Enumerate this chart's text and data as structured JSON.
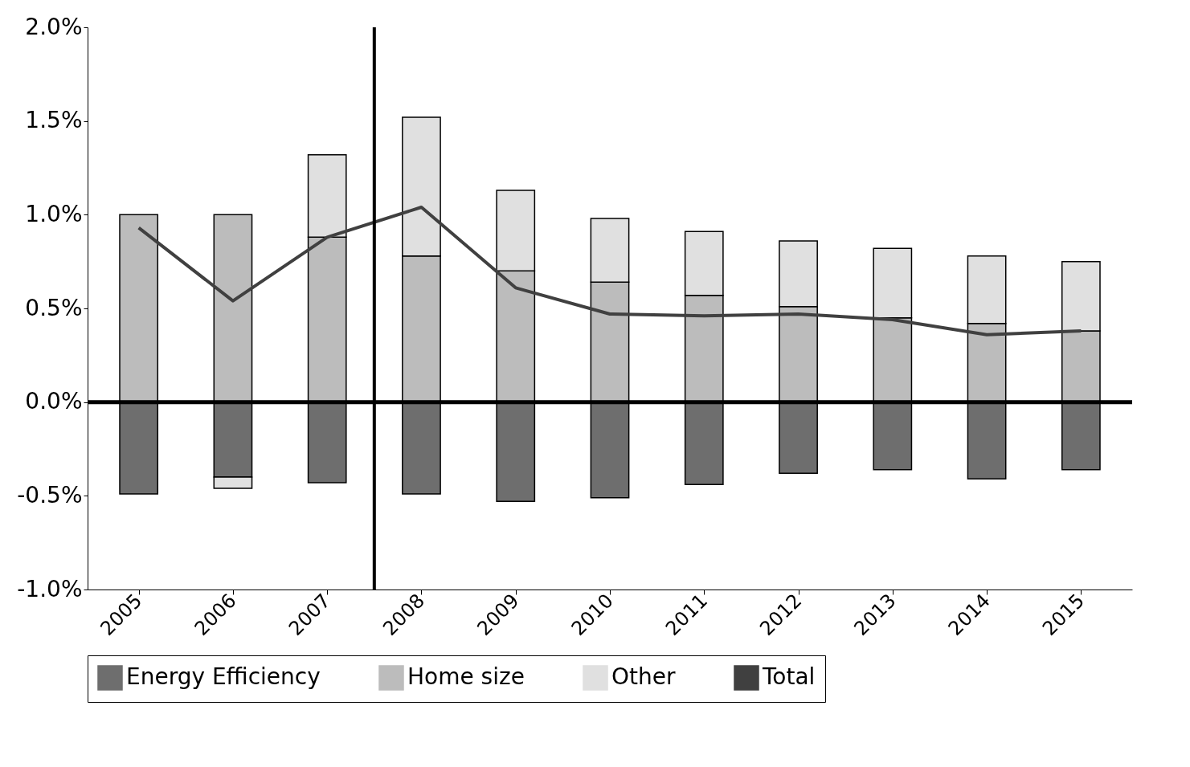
{
  "chart_data": {
    "type": "bar",
    "stacked": true,
    "x": [
      2005,
      2006,
      2007,
      2008,
      2009,
      2010,
      2011,
      2012,
      2013,
      2014,
      2015
    ],
    "xlim": [
      2004.5,
      2015.5
    ],
    "xticks": [
      2005,
      2006,
      2007,
      2008,
      2009,
      2010,
      2011,
      2012,
      2013,
      2014,
      2015
    ],
    "ylim": [
      -1.0,
      2.0
    ],
    "yticks": [
      {
        "value": -1.0,
        "label": "-1.0%"
      },
      {
        "value": -0.5,
        "label": "-0.5%"
      },
      {
        "value": 0,
        "label": "0.0%"
      },
      {
        "value": 0.5,
        "label": "0.5%"
      },
      {
        "value": 1.0,
        "label": "1.0%"
      },
      {
        "value": 1.5,
        "label": "1.5%"
      },
      {
        "value": 2.0,
        "label": "2.0%"
      }
    ],
    "series": [
      {
        "name": "Energy Efficiency",
        "color": "#6e6e6e",
        "values": [
          -0.49,
          -0.4,
          -0.43,
          -0.49,
          -0.53,
          -0.51,
          -0.44,
          -0.38,
          -0.36,
          -0.41,
          -0.36
        ]
      },
      {
        "name": "Home size",
        "color": "#bcbcbc",
        "values": [
          1.0,
          1.0,
          0.88,
          0.78,
          0.7,
          0.64,
          0.57,
          0.51,
          0.45,
          0.42,
          0.38
        ]
      },
      {
        "name": "Other",
        "color": "#e0e0e0",
        "values": [
          null,
          -0.06,
          0.44,
          0.74,
          0.43,
          0.34,
          0.34,
          0.35,
          0.37,
          0.36,
          0.37
        ]
      },
      {
        "name": "Total",
        "type": "line",
        "color": "#404040",
        "values": [
          0.93,
          0.54,
          0.88,
          1.04,
          0.61,
          0.47,
          0.46,
          0.47,
          0.44,
          0.36,
          0.38
        ]
      }
    ],
    "ref_lines": [
      {
        "axis": "x",
        "value": 2007.5,
        "color": "#000000"
      },
      {
        "axis": "y",
        "value": 0,
        "color": "#000000"
      }
    ],
    "grid": false,
    "legend": "bottom",
    "marker": "none",
    "line_style": "solid"
  }
}
